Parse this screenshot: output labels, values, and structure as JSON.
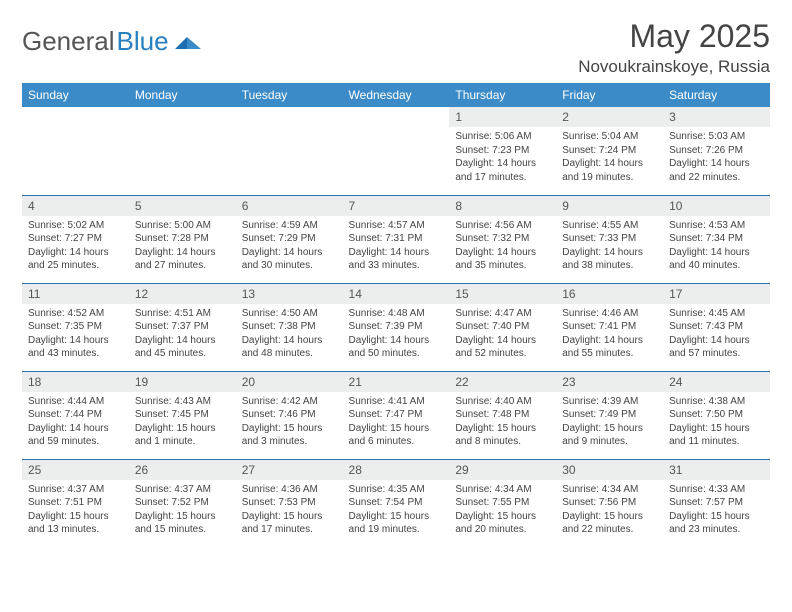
{
  "brand": {
    "part1": "General",
    "part2": "Blue"
  },
  "title": "May 2025",
  "location": "Novoukrainskoye, Russia",
  "colors": {
    "header_bg": "#3b8bc9",
    "header_text": "#ffffff",
    "daynum_bg": "#eceded",
    "text": "#444444",
    "rule": "#2a6fa8"
  },
  "columns": [
    "Sunday",
    "Monday",
    "Tuesday",
    "Wednesday",
    "Thursday",
    "Friday",
    "Saturday"
  ],
  "weeks": [
    [
      {
        "n": "",
        "sr": "",
        "ss": "",
        "dl": ""
      },
      {
        "n": "",
        "sr": "",
        "ss": "",
        "dl": ""
      },
      {
        "n": "",
        "sr": "",
        "ss": "",
        "dl": ""
      },
      {
        "n": "",
        "sr": "",
        "ss": "",
        "dl": ""
      },
      {
        "n": "1",
        "sr": "Sunrise: 5:06 AM",
        "ss": "Sunset: 7:23 PM",
        "dl": "Daylight: 14 hours and 17 minutes."
      },
      {
        "n": "2",
        "sr": "Sunrise: 5:04 AM",
        "ss": "Sunset: 7:24 PM",
        "dl": "Daylight: 14 hours and 19 minutes."
      },
      {
        "n": "3",
        "sr": "Sunrise: 5:03 AM",
        "ss": "Sunset: 7:26 PM",
        "dl": "Daylight: 14 hours and 22 minutes."
      }
    ],
    [
      {
        "n": "4",
        "sr": "Sunrise: 5:02 AM",
        "ss": "Sunset: 7:27 PM",
        "dl": "Daylight: 14 hours and 25 minutes."
      },
      {
        "n": "5",
        "sr": "Sunrise: 5:00 AM",
        "ss": "Sunset: 7:28 PM",
        "dl": "Daylight: 14 hours and 27 minutes."
      },
      {
        "n": "6",
        "sr": "Sunrise: 4:59 AM",
        "ss": "Sunset: 7:29 PM",
        "dl": "Daylight: 14 hours and 30 minutes."
      },
      {
        "n": "7",
        "sr": "Sunrise: 4:57 AM",
        "ss": "Sunset: 7:31 PM",
        "dl": "Daylight: 14 hours and 33 minutes."
      },
      {
        "n": "8",
        "sr": "Sunrise: 4:56 AM",
        "ss": "Sunset: 7:32 PM",
        "dl": "Daylight: 14 hours and 35 minutes."
      },
      {
        "n": "9",
        "sr": "Sunrise: 4:55 AM",
        "ss": "Sunset: 7:33 PM",
        "dl": "Daylight: 14 hours and 38 minutes."
      },
      {
        "n": "10",
        "sr": "Sunrise: 4:53 AM",
        "ss": "Sunset: 7:34 PM",
        "dl": "Daylight: 14 hours and 40 minutes."
      }
    ],
    [
      {
        "n": "11",
        "sr": "Sunrise: 4:52 AM",
        "ss": "Sunset: 7:35 PM",
        "dl": "Daylight: 14 hours and 43 minutes."
      },
      {
        "n": "12",
        "sr": "Sunrise: 4:51 AM",
        "ss": "Sunset: 7:37 PM",
        "dl": "Daylight: 14 hours and 45 minutes."
      },
      {
        "n": "13",
        "sr": "Sunrise: 4:50 AM",
        "ss": "Sunset: 7:38 PM",
        "dl": "Daylight: 14 hours and 48 minutes."
      },
      {
        "n": "14",
        "sr": "Sunrise: 4:48 AM",
        "ss": "Sunset: 7:39 PM",
        "dl": "Daylight: 14 hours and 50 minutes."
      },
      {
        "n": "15",
        "sr": "Sunrise: 4:47 AM",
        "ss": "Sunset: 7:40 PM",
        "dl": "Daylight: 14 hours and 52 minutes."
      },
      {
        "n": "16",
        "sr": "Sunrise: 4:46 AM",
        "ss": "Sunset: 7:41 PM",
        "dl": "Daylight: 14 hours and 55 minutes."
      },
      {
        "n": "17",
        "sr": "Sunrise: 4:45 AM",
        "ss": "Sunset: 7:43 PM",
        "dl": "Daylight: 14 hours and 57 minutes."
      }
    ],
    [
      {
        "n": "18",
        "sr": "Sunrise: 4:44 AM",
        "ss": "Sunset: 7:44 PM",
        "dl": "Daylight: 14 hours and 59 minutes."
      },
      {
        "n": "19",
        "sr": "Sunrise: 4:43 AM",
        "ss": "Sunset: 7:45 PM",
        "dl": "Daylight: 15 hours and 1 minute."
      },
      {
        "n": "20",
        "sr": "Sunrise: 4:42 AM",
        "ss": "Sunset: 7:46 PM",
        "dl": "Daylight: 15 hours and 3 minutes."
      },
      {
        "n": "21",
        "sr": "Sunrise: 4:41 AM",
        "ss": "Sunset: 7:47 PM",
        "dl": "Daylight: 15 hours and 6 minutes."
      },
      {
        "n": "22",
        "sr": "Sunrise: 4:40 AM",
        "ss": "Sunset: 7:48 PM",
        "dl": "Daylight: 15 hours and 8 minutes."
      },
      {
        "n": "23",
        "sr": "Sunrise: 4:39 AM",
        "ss": "Sunset: 7:49 PM",
        "dl": "Daylight: 15 hours and 9 minutes."
      },
      {
        "n": "24",
        "sr": "Sunrise: 4:38 AM",
        "ss": "Sunset: 7:50 PM",
        "dl": "Daylight: 15 hours and 11 minutes."
      }
    ],
    [
      {
        "n": "25",
        "sr": "Sunrise: 4:37 AM",
        "ss": "Sunset: 7:51 PM",
        "dl": "Daylight: 15 hours and 13 minutes."
      },
      {
        "n": "26",
        "sr": "Sunrise: 4:37 AM",
        "ss": "Sunset: 7:52 PM",
        "dl": "Daylight: 15 hours and 15 minutes."
      },
      {
        "n": "27",
        "sr": "Sunrise: 4:36 AM",
        "ss": "Sunset: 7:53 PM",
        "dl": "Daylight: 15 hours and 17 minutes."
      },
      {
        "n": "28",
        "sr": "Sunrise: 4:35 AM",
        "ss": "Sunset: 7:54 PM",
        "dl": "Daylight: 15 hours and 19 minutes."
      },
      {
        "n": "29",
        "sr": "Sunrise: 4:34 AM",
        "ss": "Sunset: 7:55 PM",
        "dl": "Daylight: 15 hours and 20 minutes."
      },
      {
        "n": "30",
        "sr": "Sunrise: 4:34 AM",
        "ss": "Sunset: 7:56 PM",
        "dl": "Daylight: 15 hours and 22 minutes."
      },
      {
        "n": "31",
        "sr": "Sunrise: 4:33 AM",
        "ss": "Sunset: 7:57 PM",
        "dl": "Daylight: 15 hours and 23 minutes."
      }
    ]
  ]
}
